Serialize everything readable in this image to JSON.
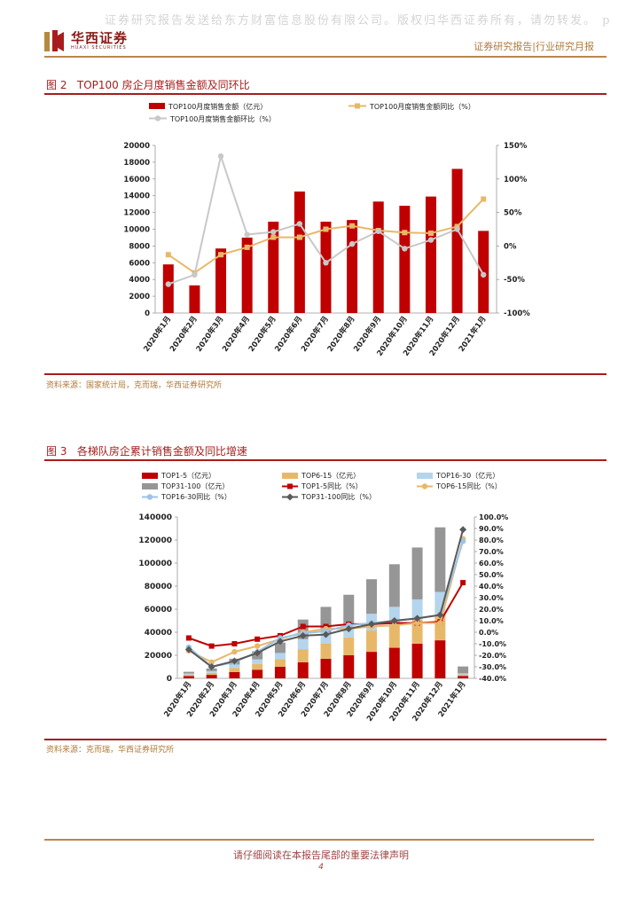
{
  "watermark": "证券研究报告发送给东方财富信息股份有限公司。版权归华西证券所有，请勿转发。 p",
  "header": {
    "logo_cn": "华西证券",
    "logo_en": "HUAXI SECURITIES",
    "right": "证券研究报告|行业研究月报"
  },
  "fig2": {
    "title": "图 2   TOP100 房企月度销售金额及同环比",
    "source": "资料来源：国家统计局，克而瑞，华西证券研究所",
    "legend": {
      "sales": "TOP100月度销售金额（亿元）",
      "yoy": "TOP100月度销售金额同比（%）",
      "mom": "TOP100月度销售金额环比（%）"
    },
    "left_ticks": [
      "0",
      "2000",
      "4000",
      "6000",
      "8000",
      "10000",
      "12000",
      "14000",
      "16000",
      "18000",
      "20000"
    ],
    "right_ticks": [
      "-100%",
      "-50%",
      "0%",
      "50%",
      "100%",
      "150%"
    ]
  },
  "fig3": {
    "title": "图 3   各梯队房企累计销售金额及同比增速",
    "source": "资料来源：克而瑞，华西证券研究所",
    "legend": {
      "t5": "TOP1-5（亿元）",
      "t615": "TOP6-15（亿元）",
      "t1630": "TOP16-30（亿元）",
      "t31100": "TOP31-100（亿元）",
      "t5y": "TOP1-5同比（%）",
      "t615y": "TOP6-15同比（%）",
      "t1630y": "TOP16-30同比（%）",
      "t31100y": "TOP31-100同比（%）"
    },
    "left_ticks": [
      "0",
      "20000",
      "40000",
      "60000",
      "80000",
      "100000",
      "120000",
      "140000"
    ],
    "right_ticks": [
      "-40.0%",
      "-30.0%",
      "-20.0%",
      "-10.0%",
      "0.0%",
      "10.0%",
      "20.0%",
      "30.0%",
      "40.0%",
      "50.0%",
      "60.0%",
      "70.0%",
      "80.0%",
      "90.0%",
      "100.0%"
    ]
  },
  "footer": {
    "disclaimer": "请仔细阅读在本报告尾部的重要法律声明",
    "page": "4"
  },
  "chart_data": [
    {
      "type": "bar",
      "title": "TOP100房企月度销售金额及同环比",
      "categories": [
        "2020年1月",
        "2020年2月",
        "2020年3月",
        "2020年4月",
        "2020年5月",
        "2020年6月",
        "2020年7月",
        "2020年8月",
        "2020年9月",
        "2020年10月",
        "2020年11月",
        "2020年12月",
        "2021年1月"
      ],
      "series": [
        {
          "name": "TOP100月度销售金额（亿元）",
          "type": "bar",
          "axis": "left",
          "color": "#c00000",
          "values": [
            5800,
            3300,
            7700,
            9000,
            10900,
            14500,
            10900,
            11100,
            13300,
            12800,
            13900,
            17200,
            9800
          ]
        },
        {
          "name": "TOP100月度销售金额同比（%）",
          "type": "line",
          "axis": "right",
          "color": "#e8b86a",
          "values": [
            -13,
            -40,
            -13,
            -2,
            13,
            13,
            25,
            30,
            23,
            20,
            19,
            29,
            70
          ]
        },
        {
          "name": "TOP100月度销售金额环比（%）",
          "type": "line",
          "axis": "right",
          "color": "#c8c8c8",
          "values": [
            -57,
            -43,
            134,
            17,
            21,
            33,
            -25,
            3,
            22,
            -4,
            9,
            25,
            -43
          ]
        }
      ],
      "ylim": [
        0,
        20000
      ],
      "y2lim": [
        -100,
        150
      ],
      "legend": "top"
    },
    {
      "type": "bar",
      "title": "各梯队房企累计销售金额及同比增速",
      "categories": [
        "2020年1月",
        "2020年2月",
        "2020年3月",
        "2020年4月",
        "2020年5月",
        "2020年6月",
        "2020年7月",
        "2020年8月",
        "2020年9月",
        "2020年10月",
        "2020年11月",
        "2020年12月",
        "2021年1月"
      ],
      "series": [
        {
          "name": "TOP1-5（亿元）",
          "type": "stacked-bar",
          "axis": "left",
          "color": "#c00000",
          "values": [
            2000,
            3000,
            5500,
            7500,
            10000,
            14000,
            17000,
            20000,
            23000,
            26500,
            30000,
            33000,
            2100
          ]
        },
        {
          "name": "TOP6-15（亿元）",
          "type": "stacked-bar",
          "axis": "left",
          "color": "#e8b86a",
          "values": [
            1200,
            1800,
            3500,
            5000,
            6500,
            11000,
            13000,
            15500,
            18500,
            19500,
            21000,
            22500,
            1200
          ]
        },
        {
          "name": "TOP16-30（亿元）",
          "type": "stacked-bar",
          "axis": "left",
          "color": "#b4d5ec",
          "values": [
            1000,
            1500,
            3000,
            4000,
            5500,
            9000,
            10000,
            12000,
            14500,
            16000,
            17500,
            19500,
            1000
          ]
        },
        {
          "name": "TOP31-100（亿元）",
          "type": "stacked-bar",
          "axis": "left",
          "color": "#969696",
          "values": [
            1500,
            2300,
            5000,
            7000,
            9000,
            17000,
            22000,
            25000,
            30000,
            37000,
            45000,
            56000,
            6000
          ]
        },
        {
          "name": "TOP1-5同比（%）",
          "type": "line",
          "axis": "right",
          "color": "#c00000",
          "values": [
            -5,
            -12,
            -10,
            -6,
            -3,
            5,
            5,
            7,
            7,
            8,
            8,
            9,
            43
          ]
        },
        {
          "name": "TOP6-15同比（%）",
          "type": "line",
          "axis": "right",
          "color": "#e8b86a",
          "values": [
            -16,
            -26,
            -17,
            -12,
            -6,
            0,
            3,
            3,
            5,
            6,
            8,
            8,
            81
          ]
        },
        {
          "name": "TOP16-30同比（%）",
          "type": "line",
          "axis": "right",
          "color": "#9dc3e6",
          "values": [
            -13,
            -30,
            -26,
            -17,
            -5,
            -1,
            1,
            6,
            8,
            10,
            12,
            15,
            79
          ]
        },
        {
          "name": "TOP31-100同比（%）",
          "type": "line",
          "axis": "right",
          "color": "#595959",
          "values": [
            -15,
            -30,
            -25,
            -18,
            -8,
            -3,
            -2,
            3,
            7,
            10,
            12,
            15,
            89
          ]
        }
      ],
      "ylim": [
        0,
        140000
      ],
      "y2lim": [
        -40,
        100
      ],
      "legend": "top"
    }
  ]
}
